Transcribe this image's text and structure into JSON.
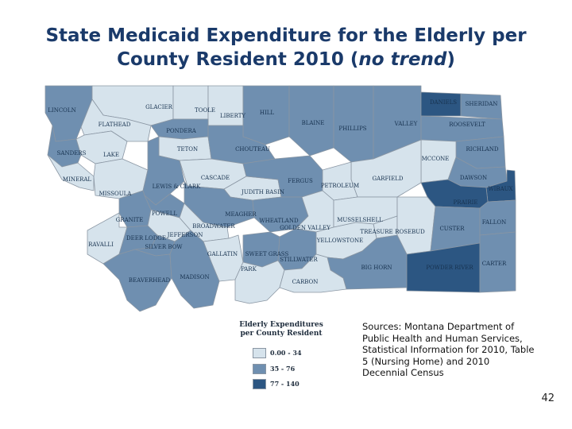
{
  "title": {
    "line1": "State Medicaid Expenditure for the Elderly per",
    "line2_prefix": "County Resident 2010 (",
    "line2_em": "no trend",
    "line2_suffix": ")"
  },
  "colors": {
    "low": "#d6e3ec",
    "mid": "#6f8fb0",
    "high": "#2c5682"
  },
  "legend": {
    "title_line1": "Elderly Expenditures",
    "title_line2": "per County Resident",
    "items": [
      {
        "label": "0.00 - 34",
        "class": "low"
      },
      {
        "label": "35 - 76",
        "class": "mid"
      },
      {
        "label": "77 - 140",
        "class": "high"
      }
    ]
  },
  "counties": [
    {
      "name": "LINCOLN",
      "class": "mid"
    },
    {
      "name": "GLACIER",
      "class": "low"
    },
    {
      "name": "TOOLE",
      "class": "low"
    },
    {
      "name": "LIBERTY",
      "class": "low"
    },
    {
      "name": "HILL",
      "class": "mid"
    },
    {
      "name": "BLAINE",
      "class": "mid"
    },
    {
      "name": "PHILLIPS",
      "class": "mid"
    },
    {
      "name": "VALLEY",
      "class": "mid"
    },
    {
      "name": "DANIELS",
      "class": "high"
    },
    {
      "name": "SHERIDAN",
      "class": "mid"
    },
    {
      "name": "ROOSEVELT",
      "class": "mid"
    },
    {
      "name": "FLATHEAD",
      "class": "low"
    },
    {
      "name": "PONDERA",
      "class": "mid"
    },
    {
      "name": "TETON",
      "class": "low"
    },
    {
      "name": "CHOUTEAU",
      "class": "mid"
    },
    {
      "name": "SANDERS",
      "class": "mid"
    },
    {
      "name": "LAKE",
      "class": "low"
    },
    {
      "name": "RICHLAND",
      "class": "mid"
    },
    {
      "name": "MCCONE",
      "class": "low"
    },
    {
      "name": "GARFIELD",
      "class": "low"
    },
    {
      "name": "MINERAL",
      "class": "low"
    },
    {
      "name": "MISSOULA",
      "class": "low"
    },
    {
      "name": "LEWIS & CLARK",
      "class": "mid"
    },
    {
      "name": "CASCADE",
      "class": "low"
    },
    {
      "name": "JUDITH BASIN",
      "class": "low"
    },
    {
      "name": "FERGUS",
      "class": "mid"
    },
    {
      "name": "PETROLEUM",
      "class": "low"
    },
    {
      "name": "DAWSON",
      "class": "mid"
    },
    {
      "name": "WIBAUX",
      "class": "high"
    },
    {
      "name": "PRAIRIE",
      "class": "high"
    },
    {
      "name": "GRANITE",
      "class": "mid"
    },
    {
      "name": "POWELL",
      "class": "mid"
    },
    {
      "name": "MEAGHER",
      "class": "mid"
    },
    {
      "name": "WHEATLAND",
      "class": "mid"
    },
    {
      "name": "GOLDEN VALLEY",
      "class": "low"
    },
    {
      "name": "MUSSELSHELL",
      "class": "low"
    },
    {
      "name": "TREASURE",
      "class": "low"
    },
    {
      "name": "ROSEBUD",
      "class": "low"
    },
    {
      "name": "CUSTER",
      "class": "mid"
    },
    {
      "name": "FALLON",
      "class": "mid"
    },
    {
      "name": "RAVALLI",
      "class": "low"
    },
    {
      "name": "DEER LODGE",
      "class": "mid"
    },
    {
      "name": "JEFFERSON",
      "class": "low"
    },
    {
      "name": "BROADWATER",
      "class": "low"
    },
    {
      "name": "SILVER BOW",
      "class": "mid"
    },
    {
      "name": "GALLATIN",
      "class": "low"
    },
    {
      "name": "SWEET GRASS",
      "class": "mid"
    },
    {
      "name": "STILLWATER",
      "class": "mid"
    },
    {
      "name": "YELLOWSTONE",
      "class": "low"
    },
    {
      "name": "BIG HORN",
      "class": "mid"
    },
    {
      "name": "POWDER RIVER",
      "class": "high"
    },
    {
      "name": "CARTER",
      "class": "mid"
    },
    {
      "name": "BEAVERHEAD",
      "class": "mid"
    },
    {
      "name": "MADISON",
      "class": "mid"
    },
    {
      "name": "PARK",
      "class": "low"
    },
    {
      "name": "CARBON",
      "class": "low"
    }
  ],
  "sources": "Sources:  Montana Department of Public Health and Human Services, Statistical Information for 2010, Table 5 (Nursing Home) and 2010 Decennial Census",
  "page_number": "42"
}
